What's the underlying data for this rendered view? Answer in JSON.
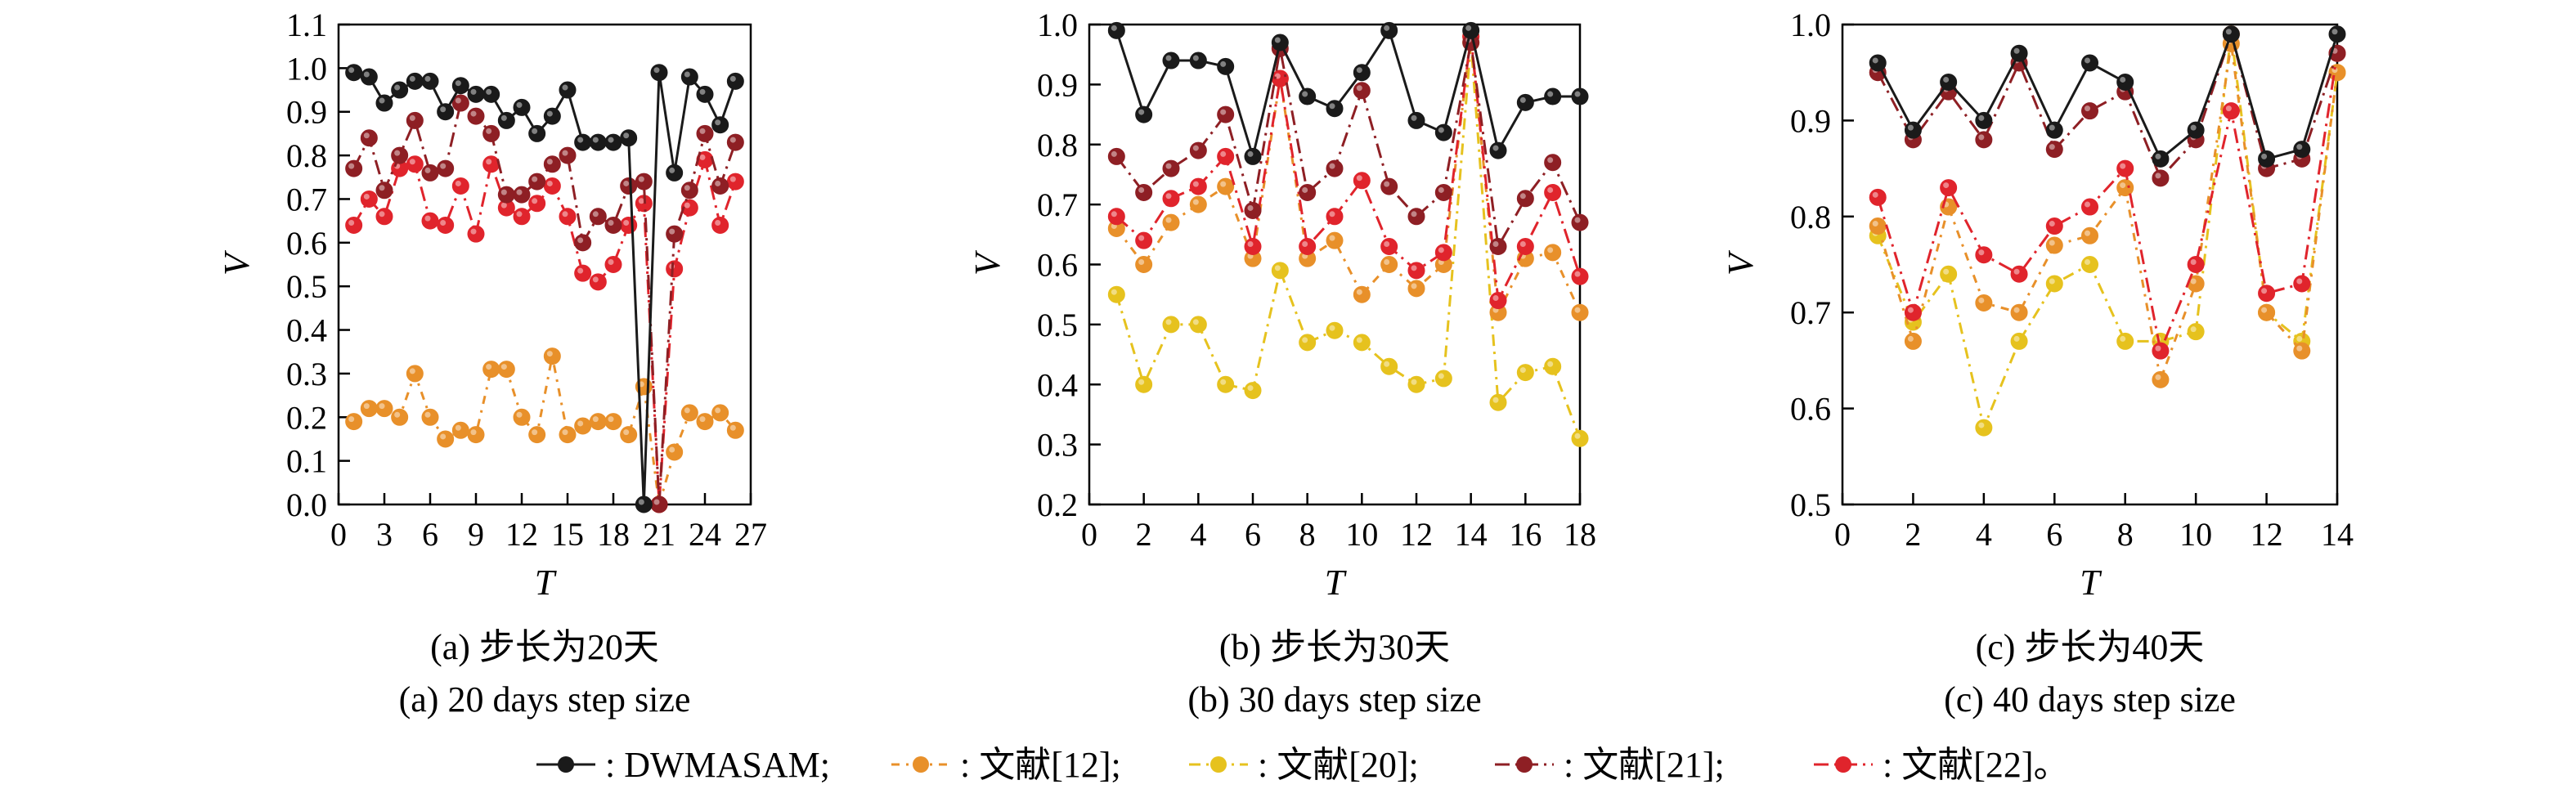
{
  "colors": {
    "DWMASAM": "#1a1a1a",
    "ref12": "#e8902a",
    "ref20": "#e6c21e",
    "ref21": "#8e1f24",
    "ref22": "#e0242c"
  },
  "legend": {
    "separator": ": ",
    "items": [
      {
        "key": "DWMASAM",
        "label": "DWMASAM;"
      },
      {
        "key": "ref12",
        "label": "文献[12];"
      },
      {
        "key": "ref20",
        "label": "文献[20];"
      },
      {
        "key": "ref21",
        "label": "文献[21];"
      },
      {
        "key": "ref22",
        "label": "文献[22]。"
      }
    ]
  },
  "chart_data": [
    {
      "type": "line",
      "caption_cn": "(a) 步长为20天",
      "caption_en": "(a) 20 days step size",
      "xlabel": "T",
      "ylabel": "V",
      "xlim": [
        0,
        27
      ],
      "ylim": [
        0,
        1.1
      ],
      "xticks": [
        0,
        3,
        6,
        9,
        12,
        15,
        18,
        21,
        24,
        27
      ],
      "yticks": [
        0.0,
        0.1,
        0.2,
        0.3,
        0.4,
        0.5,
        0.6,
        0.7,
        0.8,
        0.9,
        1.0,
        1.1
      ],
      "yprecision": 1,
      "x": [
        1,
        2,
        3,
        4,
        5,
        6,
        7,
        8,
        9,
        10,
        11,
        12,
        13,
        14,
        15,
        16,
        17,
        18,
        19,
        20,
        21,
        22,
        23,
        24,
        25,
        26
      ],
      "series": [
        {
          "key": "ref12",
          "values": [
            0.19,
            0.22,
            0.22,
            0.2,
            0.3,
            0.2,
            0.15,
            0.17,
            0.16,
            0.31,
            0.31,
            0.2,
            0.16,
            0.34,
            0.16,
            0.18,
            0.19,
            0.19,
            0.16,
            0.27,
            0.0,
            0.12,
            0.21,
            0.19,
            0.21,
            0.17
          ]
        },
        {
          "key": "ref22",
          "values": [
            0.64,
            0.7,
            0.66,
            0.77,
            0.78,
            0.65,
            0.64,
            0.73,
            0.62,
            0.78,
            0.68,
            0.66,
            0.69,
            0.73,
            0.66,
            0.53,
            0.51,
            0.55,
            0.64,
            0.69,
            0.0,
            0.54,
            0.68,
            0.79,
            0.64,
            0.74
          ]
        },
        {
          "key": "ref21",
          "values": [
            0.77,
            0.84,
            0.72,
            0.8,
            0.88,
            0.76,
            0.77,
            0.92,
            0.89,
            0.85,
            0.71,
            0.71,
            0.74,
            0.78,
            0.8,
            0.6,
            0.66,
            0.64,
            0.73,
            0.74,
            0.0,
            0.62,
            0.72,
            0.85,
            0.73,
            0.83
          ]
        },
        {
          "key": "DWMASAM",
          "values": [
            0.99,
            0.98,
            0.92,
            0.95,
            0.97,
            0.97,
            0.9,
            0.96,
            0.94,
            0.94,
            0.88,
            0.91,
            0.85,
            0.89,
            0.95,
            0.83,
            0.83,
            0.83,
            0.84,
            0.0,
            0.99,
            0.76,
            0.98,
            0.94,
            0.87,
            0.97
          ]
        }
      ]
    },
    {
      "type": "line",
      "caption_cn": "(b) 步长为30天",
      "caption_en": "(b) 30 days step size",
      "xlabel": "T",
      "ylabel": "V",
      "xlim": [
        0,
        18
      ],
      "ylim": [
        0.2,
        1.0
      ],
      "xticks": [
        0,
        2,
        4,
        6,
        8,
        10,
        12,
        14,
        16,
        18
      ],
      "yticks": [
        0.2,
        0.3,
        0.4,
        0.5,
        0.6,
        0.7,
        0.8,
        0.9,
        1.0
      ],
      "yprecision": 1,
      "x": [
        1,
        2,
        3,
        4,
        5,
        6,
        7,
        8,
        9,
        10,
        11,
        12,
        13,
        14,
        15,
        16,
        17,
        18
      ],
      "series": [
        {
          "key": "ref20",
          "values": [
            0.55,
            0.4,
            0.5,
            0.5,
            0.4,
            0.39,
            0.59,
            0.47,
            0.49,
            0.47,
            0.43,
            0.4,
            0.41,
            0.97,
            0.37,
            0.42,
            0.43,
            0.31
          ]
        },
        {
          "key": "ref12",
          "values": [
            0.66,
            0.6,
            0.67,
            0.7,
            0.73,
            0.61,
            0.91,
            0.61,
            0.64,
            0.55,
            0.6,
            0.56,
            0.6,
            0.98,
            0.52,
            0.61,
            0.62,
            0.52
          ]
        },
        {
          "key": "ref22",
          "values": [
            0.68,
            0.64,
            0.71,
            0.73,
            0.78,
            0.63,
            0.91,
            0.63,
            0.68,
            0.74,
            0.63,
            0.59,
            0.62,
            0.98,
            0.54,
            0.63,
            0.72,
            0.58
          ]
        },
        {
          "key": "ref21",
          "values": [
            0.78,
            0.72,
            0.76,
            0.79,
            0.85,
            0.69,
            0.96,
            0.72,
            0.76,
            0.89,
            0.73,
            0.68,
            0.72,
            0.97,
            0.63,
            0.71,
            0.77,
            0.67
          ]
        },
        {
          "key": "DWMASAM",
          "values": [
            0.99,
            0.85,
            0.94,
            0.94,
            0.93,
            0.78,
            0.97,
            0.88,
            0.86,
            0.92,
            0.99,
            0.84,
            0.82,
            0.99,
            0.79,
            0.87,
            0.88,
            0.88
          ]
        }
      ]
    },
    {
      "type": "line",
      "caption_cn": "(c) 步长为40天",
      "caption_en": "(c) 40 days step size",
      "xlabel": "T",
      "ylabel": "V",
      "xlim": [
        0,
        14
      ],
      "ylim": [
        0.5,
        1.0
      ],
      "xticks": [
        0,
        2,
        4,
        6,
        8,
        10,
        12,
        14
      ],
      "yticks": [
        0.5,
        0.6,
        0.7,
        0.8,
        0.9,
        1.0
      ],
      "yprecision": 1,
      "x": [
        1,
        2,
        3,
        4,
        5,
        6,
        7,
        8,
        9,
        10,
        11,
        12,
        13,
        14
      ],
      "series": [
        {
          "key": "ref20",
          "values": [
            0.78,
            0.69,
            0.74,
            0.58,
            0.67,
            0.73,
            0.75,
            0.67,
            0.67,
            0.68,
            0.99,
            0.7,
            0.67,
            0.95
          ]
        },
        {
          "key": "ref12",
          "values": [
            0.79,
            0.67,
            0.81,
            0.71,
            0.7,
            0.77,
            0.78,
            0.83,
            0.63,
            0.73,
            0.98,
            0.7,
            0.66,
            0.95
          ]
        },
        {
          "key": "ref22",
          "values": [
            0.82,
            0.7,
            0.83,
            0.76,
            0.74,
            0.79,
            0.81,
            0.85,
            0.66,
            0.75,
            0.91,
            0.72,
            0.73,
            0.97
          ]
        },
        {
          "key": "ref21",
          "values": [
            0.95,
            0.88,
            0.93,
            0.88,
            0.96,
            0.87,
            0.91,
            0.93,
            0.84,
            0.88,
            0.99,
            0.85,
            0.86,
            0.97
          ]
        },
        {
          "key": "DWMASAM",
          "values": [
            0.96,
            0.89,
            0.94,
            0.9,
            0.97,
            0.89,
            0.96,
            0.94,
            0.86,
            0.89,
            0.99,
            0.86,
            0.87,
            0.99
          ]
        }
      ]
    }
  ]
}
